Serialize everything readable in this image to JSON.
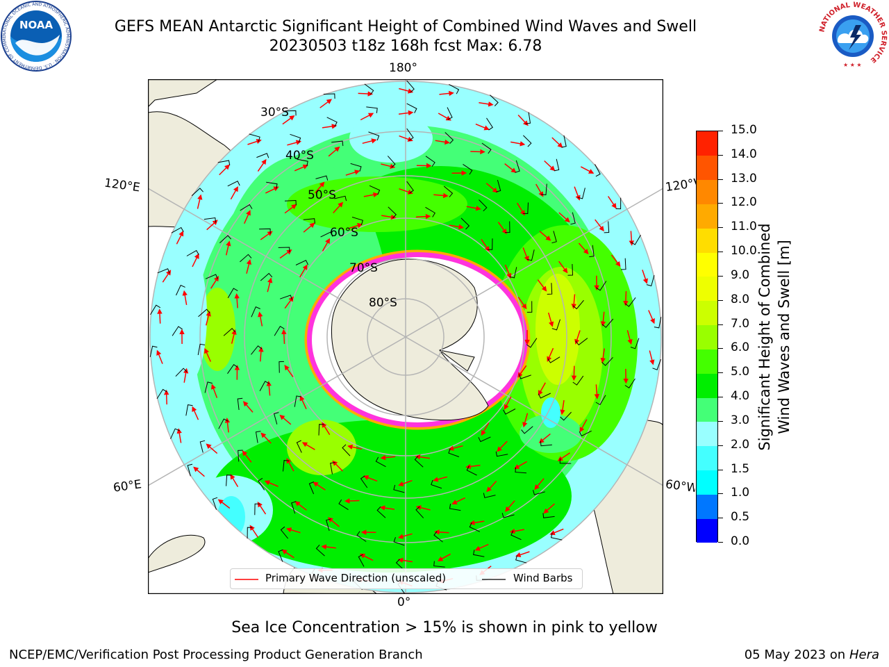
{
  "header": {
    "title_line1": "GEFS MEAN Antarctic Significant Height of Combined Wind Waves and Swell",
    "title_line2": "20230503 t18z 168h fcst   Max: 6.78"
  },
  "logos": {
    "noaa_text": "NOAA",
    "noaa_ring_text": "NATIONAL OCEANIC AND ATMOSPHERIC ADMINISTRATION · U.S. DEPARTMENT OF COMMERCE",
    "nws_ring_text": "NATIONAL WEATHER SERVICE"
  },
  "map": {
    "longitude_labels": {
      "top": "180°",
      "bottom": "0°",
      "upper_left": "120°E",
      "lower_left": "60°E",
      "upper_right": "120°W",
      "lower_right": "60°W"
    },
    "latitude_labels": [
      "30°S",
      "40°S",
      "50°S",
      "60°S",
      "70°S",
      "80°S"
    ],
    "legend": {
      "wave_direction": "Primary Wave Direction (unscaled)",
      "wind_barbs": "Wind Barbs"
    },
    "colors": {
      "land": "#eeecdc",
      "ice_edge": "#ff33dd",
      "arrows": "#ff0000",
      "barbs": "#000000"
    }
  },
  "colorbar": {
    "label_line1": "Significant Height of Combined",
    "label_line2": "Wind Waves and Swell [m]",
    "ticks": [
      "0.0",
      "0.5",
      "1.0",
      "1.5",
      "2.0",
      "3.0",
      "4.0",
      "5.0",
      "6.0",
      "7.0",
      "8.0",
      "9.0",
      "10.0",
      "11.0",
      "12.0",
      "13.0",
      "14.0",
      "15.0"
    ],
    "colors": [
      "#0000ff",
      "#0077ff",
      "#00ffff",
      "#44ffff",
      "#99ffff",
      "#44ff77",
      "#00ee00",
      "#44ff00",
      "#99ff00",
      "#ccff00",
      "#eeff00",
      "#ffff00",
      "#ffdd00",
      "#ffaa00",
      "#ff8800",
      "#ff5500",
      "#ff2200"
    ]
  },
  "notes": {
    "sea_ice": "Sea Ice Concentration > 15% is shown in pink to yellow"
  },
  "footer": {
    "left": "NCEP/EMC/Verification Post Processing Product Generation Branch",
    "date": "05 May 2023 on",
    "host": "Hera"
  }
}
